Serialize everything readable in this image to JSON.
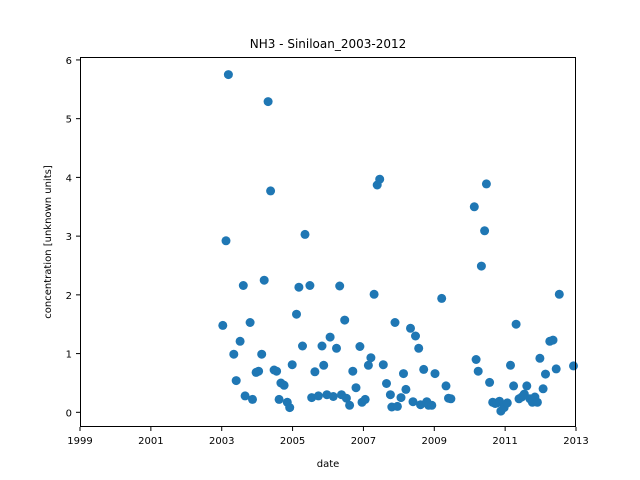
{
  "chart_data": {
    "type": "scatter",
    "title": "NH3 - Siniloan_2003-2012",
    "xlabel": "date",
    "ylabel": "concentration [unknown units]",
    "xlim": [
      1999,
      2013
    ],
    "ylim": [
      -0.25,
      6.05
    ],
    "xticks": [
      1999,
      2001,
      2003,
      2005,
      2007,
      2009,
      2011,
      2013
    ],
    "yticks": [
      0,
      1,
      2,
      3,
      4,
      5,
      6
    ],
    "grid": false,
    "marker_color": "#1f77b4",
    "points": [
      {
        "x": 2003.03,
        "y": 1.48
      },
      {
        "x": 2003.12,
        "y": 2.92
      },
      {
        "x": 2003.19,
        "y": 5.75
      },
      {
        "x": 2003.34,
        "y": 0.99
      },
      {
        "x": 2003.41,
        "y": 0.54
      },
      {
        "x": 2003.52,
        "y": 1.21
      },
      {
        "x": 2003.61,
        "y": 2.16
      },
      {
        "x": 2003.66,
        "y": 0.28
      },
      {
        "x": 2003.8,
        "y": 1.53
      },
      {
        "x": 2003.87,
        "y": 0.22
      },
      {
        "x": 2003.97,
        "y": 0.68
      },
      {
        "x": 2004.04,
        "y": 0.7
      },
      {
        "x": 2004.13,
        "y": 0.99
      },
      {
        "x": 2004.2,
        "y": 2.25
      },
      {
        "x": 2004.31,
        "y": 5.29
      },
      {
        "x": 2004.38,
        "y": 3.77
      },
      {
        "x": 2004.48,
        "y": 0.72
      },
      {
        "x": 2004.55,
        "y": 0.7
      },
      {
        "x": 2004.62,
        "y": 0.22
      },
      {
        "x": 2004.67,
        "y": 0.5
      },
      {
        "x": 2004.76,
        "y": 0.46
      },
      {
        "x": 2004.85,
        "y": 0.17
      },
      {
        "x": 2004.92,
        "y": 0.08
      },
      {
        "x": 2004.99,
        "y": 0.81
      },
      {
        "x": 2005.11,
        "y": 1.67
      },
      {
        "x": 2005.18,
        "y": 2.13
      },
      {
        "x": 2005.28,
        "y": 1.13
      },
      {
        "x": 2005.35,
        "y": 3.03
      },
      {
        "x": 2005.49,
        "y": 2.16
      },
      {
        "x": 2005.54,
        "y": 0.25
      },
      {
        "x": 2005.63,
        "y": 0.69
      },
      {
        "x": 2005.73,
        "y": 0.28
      },
      {
        "x": 2005.83,
        "y": 1.13
      },
      {
        "x": 2005.88,
        "y": 0.8
      },
      {
        "x": 2005.97,
        "y": 0.3
      },
      {
        "x": 2006.06,
        "y": 1.28
      },
      {
        "x": 2006.15,
        "y": 0.27
      },
      {
        "x": 2006.24,
        "y": 1.09
      },
      {
        "x": 2006.33,
        "y": 2.15
      },
      {
        "x": 2006.38,
        "y": 0.3
      },
      {
        "x": 2006.47,
        "y": 1.57
      },
      {
        "x": 2006.52,
        "y": 0.24
      },
      {
        "x": 2006.61,
        "y": 0.12
      },
      {
        "x": 2006.7,
        "y": 0.7
      },
      {
        "x": 2006.79,
        "y": 0.42
      },
      {
        "x": 2006.9,
        "y": 1.12
      },
      {
        "x": 2006.96,
        "y": 0.17
      },
      {
        "x": 2007.05,
        "y": 0.22
      },
      {
        "x": 2007.14,
        "y": 0.8
      },
      {
        "x": 2007.21,
        "y": 0.93
      },
      {
        "x": 2007.3,
        "y": 2.01
      },
      {
        "x": 2007.39,
        "y": 3.87
      },
      {
        "x": 2007.46,
        "y": 3.97
      },
      {
        "x": 2007.56,
        "y": 0.81
      },
      {
        "x": 2007.65,
        "y": 0.49
      },
      {
        "x": 2007.76,
        "y": 0.3
      },
      {
        "x": 2007.8,
        "y": 0.09
      },
      {
        "x": 2007.89,
        "y": 1.53
      },
      {
        "x": 2007.96,
        "y": 0.1
      },
      {
        "x": 2008.06,
        "y": 0.25
      },
      {
        "x": 2008.13,
        "y": 0.66
      },
      {
        "x": 2008.2,
        "y": 0.39
      },
      {
        "x": 2008.33,
        "y": 1.43
      },
      {
        "x": 2008.4,
        "y": 0.18
      },
      {
        "x": 2008.47,
        "y": 1.3
      },
      {
        "x": 2008.56,
        "y": 1.09
      },
      {
        "x": 2008.61,
        "y": 0.13
      },
      {
        "x": 2008.7,
        "y": 0.73
      },
      {
        "x": 2008.79,
        "y": 0.18
      },
      {
        "x": 2008.84,
        "y": 0.12
      },
      {
        "x": 2008.93,
        "y": 0.12
      },
      {
        "x": 2009.02,
        "y": 0.66
      },
      {
        "x": 2009.21,
        "y": 1.94
      },
      {
        "x": 2009.33,
        "y": 0.45
      },
      {
        "x": 2009.4,
        "y": 0.24
      },
      {
        "x": 2009.47,
        "y": 0.23
      },
      {
        "x": 2010.13,
        "y": 3.5
      },
      {
        "x": 2010.18,
        "y": 0.9
      },
      {
        "x": 2010.24,
        "y": 0.7
      },
      {
        "x": 2010.33,
        "y": 2.49
      },
      {
        "x": 2010.42,
        "y": 3.09
      },
      {
        "x": 2010.47,
        "y": 3.89
      },
      {
        "x": 2010.56,
        "y": 0.51
      },
      {
        "x": 2010.65,
        "y": 0.17
      },
      {
        "x": 2010.72,
        "y": 0.15
      },
      {
        "x": 2010.77,
        "y": 0.16
      },
      {
        "x": 2010.84,
        "y": 0.19
      },
      {
        "x": 2010.88,
        "y": 0.02
      },
      {
        "x": 2010.97,
        "y": 0.08
      },
      {
        "x": 2011.06,
        "y": 0.16
      },
      {
        "x": 2011.15,
        "y": 0.8
      },
      {
        "x": 2011.24,
        "y": 0.45
      },
      {
        "x": 2011.31,
        "y": 1.5
      },
      {
        "x": 2011.39,
        "y": 0.23
      },
      {
        "x": 2011.47,
        "y": 0.26
      },
      {
        "x": 2011.54,
        "y": 0.31
      },
      {
        "x": 2011.61,
        "y": 0.45
      },
      {
        "x": 2011.7,
        "y": 0.23
      },
      {
        "x": 2011.77,
        "y": 0.17
      },
      {
        "x": 2011.84,
        "y": 0.26
      },
      {
        "x": 2011.91,
        "y": 0.17
      },
      {
        "x": 2011.98,
        "y": 0.92
      },
      {
        "x": 2012.07,
        "y": 0.4
      },
      {
        "x": 2012.14,
        "y": 0.65
      },
      {
        "x": 2012.26,
        "y": 1.21
      },
      {
        "x": 2012.35,
        "y": 1.23
      },
      {
        "x": 2012.44,
        "y": 0.74
      },
      {
        "x": 2012.53,
        "y": 2.01
      },
      {
        "x": 2012.93,
        "y": 0.79
      }
    ]
  }
}
